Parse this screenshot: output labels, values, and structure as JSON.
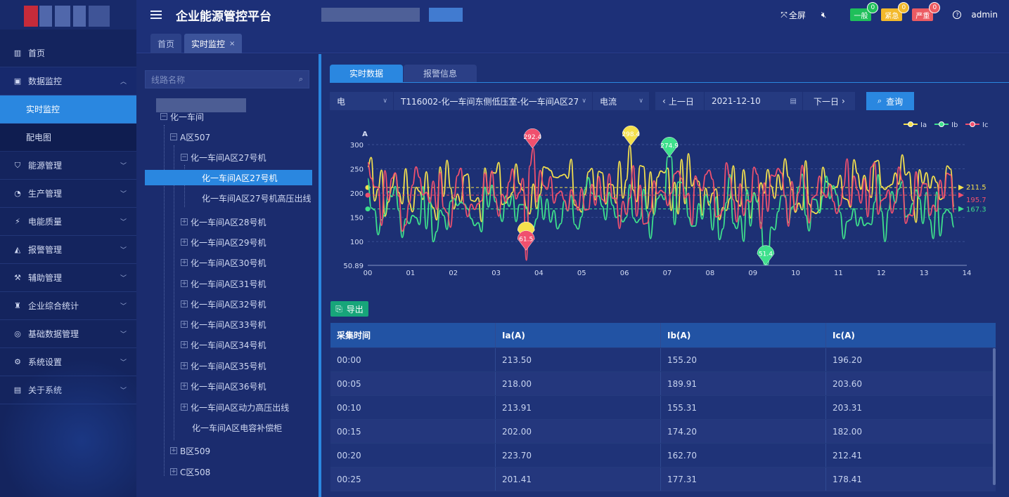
{
  "app": {
    "title": "企业能源管控平台",
    "user": "admin",
    "fullscreen": "全屏"
  },
  "alarms": [
    {
      "label": "一般",
      "count": "0",
      "color": "#1fbf5a"
    },
    {
      "label": "紧急",
      "count": "0",
      "color": "#f3b92b"
    },
    {
      "label": "严重",
      "count": "0",
      "color": "#ec5b62"
    }
  ],
  "sidebar": {
    "items": [
      {
        "label": "首页",
        "icon": "home-icon"
      },
      {
        "label": "数据监控",
        "icon": "monitor-icon",
        "expanded": true,
        "children": [
          {
            "label": "实时监控",
            "active": true
          },
          {
            "label": "配电图"
          }
        ]
      },
      {
        "label": "能源管理",
        "icon": "shield-icon"
      },
      {
        "label": "生产管理",
        "icon": "gauge-icon"
      },
      {
        "label": "电能质量",
        "icon": "plug-icon"
      },
      {
        "label": "报警管理",
        "icon": "bell-icon"
      },
      {
        "label": "辅助管理",
        "icon": "tools-icon"
      },
      {
        "label": "企业综合统计",
        "icon": "stats-icon"
      },
      {
        "label": "基础数据管理",
        "icon": "database-icon"
      },
      {
        "label": "系统设置",
        "icon": "settings-icon"
      },
      {
        "label": "关于系统",
        "icon": "info-icon"
      }
    ]
  },
  "page_tabs": [
    {
      "label": "首页"
    },
    {
      "label": "实时监控",
      "close": "×"
    }
  ],
  "tree": {
    "search_placeholder": "线路名称",
    "nodes": {
      "root": "化一车间",
      "area507": "A区507",
      "m27": "化一车间A区27号机",
      "m27_sel": "化一车间A区27号机",
      "m27_hv": "化一车间A区27号机高压出线",
      "m28": "化一车间A区28号机",
      "m29": "化一车间A区29号机",
      "m30": "化一车间A区30号机",
      "m31": "化一车间A区31号机",
      "m32": "化一车间A区32号机",
      "m33": "化一车间A区33号机",
      "m34": "化一车间A区34号机",
      "m35": "化一车间A区35号机",
      "m36": "化一车间A区36号机",
      "power_hv": "化一车间A区动力高压出线",
      "cap": "化一车间A区电容补偿柜",
      "area509": "B区509",
      "area508": "C区508"
    }
  },
  "main_tabs": [
    {
      "label": "实时数据"
    },
    {
      "label": "报警信息"
    }
  ],
  "filters": {
    "type": "电",
    "line": "T116002-化一车间东侧低压室-化一车间A区27#机",
    "param": "电流",
    "prev": "上一日",
    "date": "2021-12-10",
    "next": "下一日",
    "query": "查询"
  },
  "export_label": "导出",
  "table": {
    "headers": [
      "采集时间",
      "Ia(A)",
      "Ib(A)",
      "Ic(A)"
    ],
    "rows": [
      [
        "00:00",
        "213.50",
        "155.20",
        "196.20"
      ],
      [
        "00:05",
        "218.00",
        "189.91",
        "203.60"
      ],
      [
        "00:10",
        "213.91",
        "155.31",
        "203.31"
      ],
      [
        "00:15",
        "202.00",
        "174.20",
        "182.00"
      ],
      [
        "00:20",
        "223.70",
        "162.70",
        "212.41"
      ],
      [
        "00:25",
        "201.41",
        "177.31",
        "178.41"
      ]
    ]
  },
  "chart_data": {
    "type": "line",
    "ylabel": "A",
    "ylim": [
      50.89,
      300
    ],
    "yticks": [
      "50.89",
      "100",
      "150",
      "200",
      "250",
      "300"
    ],
    "xlim": [
      0,
      14
    ],
    "xticks": [
      "00",
      "01",
      "02",
      "03",
      "04",
      "05",
      "06",
      "07",
      "08",
      "09",
      "10",
      "11",
      "12",
      "13",
      "14"
    ],
    "legend": "top-right",
    "series": [
      {
        "name": "Ia",
        "color": "#f4e04d",
        "avg": "211.5",
        "max": "298.4",
        "max_x": 6.15,
        "min": "",
        "min_x": 3.7
      },
      {
        "name": "Ib",
        "color": "#3ee08c",
        "avg": "167.3",
        "max": "274.9",
        "max_x": 7.05,
        "min": "51.4",
        "min_x": 9.3
      },
      {
        "name": "Ic",
        "color": "#f0506e",
        "avg": "195.7",
        "max": "292.4",
        "max_x": 3.85,
        "min": "61.5",
        "min_x": 3.7
      }
    ]
  }
}
